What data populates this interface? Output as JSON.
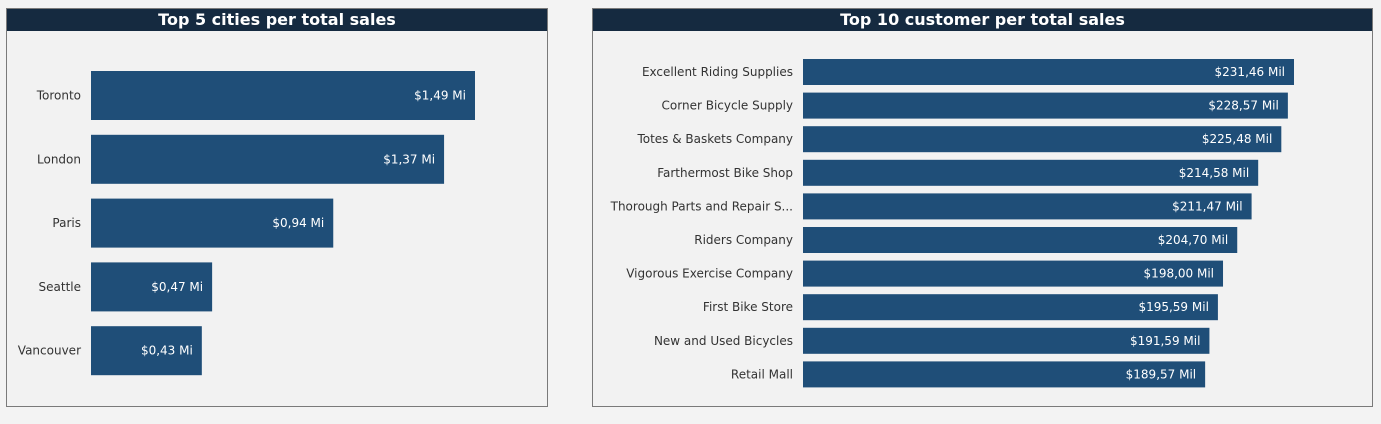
{
  "colors": {
    "bar": "#1f4e78",
    "title_bg": "#152a40",
    "background": "#f2f2f2"
  },
  "chart_data": [
    {
      "type": "bar",
      "orientation": "horizontal",
      "title": "Top 5 cities per total sales",
      "categories": [
        "Toronto",
        "London",
        "Paris",
        "Seattle",
        "Vancouver"
      ],
      "values": [
        1.49,
        1.37,
        0.94,
        0.47,
        0.43
      ],
      "value_labels": [
        "$1,49 Mi",
        "$1,37 Mi",
        "$0,94 Mi",
        "$0,47 Mi",
        "$0,43 Mi"
      ],
      "xlim": [
        0,
        1.49
      ],
      "grid": false,
      "legend": "none"
    },
    {
      "type": "bar",
      "orientation": "horizontal",
      "title": "Top 10 customer per total sales",
      "categories": [
        "Excellent Riding Supplies",
        "Corner Bicycle Supply",
        "Totes & Baskets Company",
        "Farthermost Bike Shop",
        "Thorough Parts and Repair S...",
        "Riders Company",
        "Vigorous Exercise Company",
        "First Bike Store",
        "New and Used Bicycles",
        "Retail Mall"
      ],
      "values": [
        231.46,
        228.57,
        225.48,
        214.58,
        211.47,
        204.7,
        198.0,
        195.59,
        191.59,
        189.57
      ],
      "value_labels": [
        "$231,46 Mil",
        "$228,57 Mil",
        "$225,48 Mil",
        "$214,58 Mil",
        "$211,47 Mil",
        "$204,70 Mil",
        "$198,00 Mil",
        "$195,59 Mil",
        "$191,59 Mil",
        "$189,57 Mil"
      ],
      "xlim": [
        0,
        231.46
      ],
      "grid": false,
      "legend": "none"
    }
  ]
}
